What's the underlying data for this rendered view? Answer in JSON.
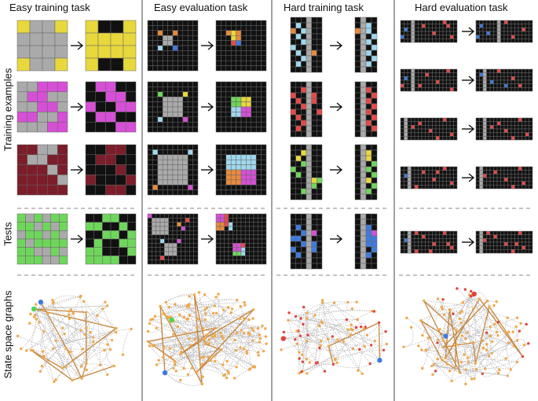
{
  "columns": [
    {
      "key": "easy_train",
      "label": "Easy training task"
    },
    {
      "key": "easy_eval",
      "label": "Easy evaluation task"
    },
    {
      "key": "hard_train",
      "label": "Hard training task"
    },
    {
      "key": "hard_eval",
      "label": "Hard evaluation task"
    }
  ],
  "rows": {
    "training": "Training examples",
    "tests": "Tests",
    "graphs": "State space graphs"
  },
  "arrow_glyph": "→",
  "palette": {
    "0": "#111111",
    "1": "#e8d83c",
    "2": "#aaaaaa",
    "3": "#d64fd6",
    "4": "#7c1d2a",
    "5": "#6fd65c",
    "6": "#e84848",
    "7": "#3d7be0",
    "8": "#e88a3c",
    "9": "#9fd8ee"
  },
  "graph_colors": {
    "node": "#f0a84a",
    "edge": "#bdbdbd",
    "path": "#c7863c",
    "start": "#3d7be0",
    "goal": "#4cd64c",
    "red": "#e0443c"
  }
}
